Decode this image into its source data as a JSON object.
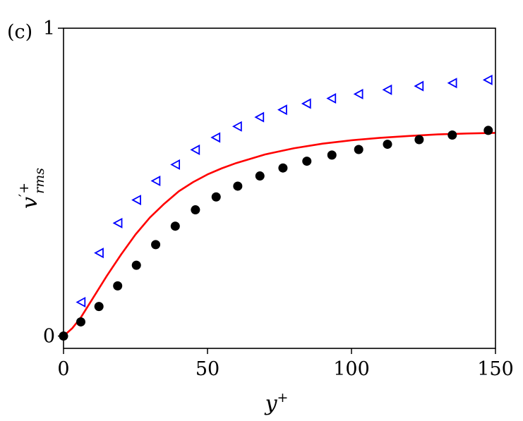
{
  "panel_label": "(c)",
  "chart_data": {
    "type": "line",
    "title": "",
    "xlabel": "y",
    "xlabel_sup": "+",
    "ylabel": "v",
    "ylabel_sup": "′+",
    "ylabel_sub": "rms",
    "xlim": [
      0,
      150
    ],
    "ylim": [
      -0.04,
      1.0
    ],
    "xticks": [
      0,
      50,
      100,
      150
    ],
    "yticks": [
      0,
      1
    ],
    "grid": false,
    "legend": "none",
    "series": [
      {
        "kind": "line",
        "color": "#ff0000",
        "x": [
          0,
          3,
          6,
          10,
          15,
          20,
          25,
          30,
          35,
          40,
          45,
          50,
          55,
          60,
          70,
          80,
          90,
          100,
          110,
          120,
          130,
          140,
          150
        ],
        "y": [
          0,
          0.025,
          0.06,
          0.12,
          0.195,
          0.265,
          0.33,
          0.385,
          0.43,
          0.47,
          0.5,
          0.525,
          0.545,
          0.562,
          0.59,
          0.61,
          0.625,
          0.636,
          0.644,
          0.65,
          0.655,
          0.658,
          0.66
        ]
      },
      {
        "kind": "scatter",
        "marker": "circle",
        "color": "#000000",
        "x": [
          0,
          6,
          12.3,
          18.8,
          25.3,
          32,
          38.8,
          45.8,
          53,
          60.5,
          68.2,
          76.2,
          84.5,
          93.2,
          102.5,
          112.5,
          123.5,
          135,
          147.5
        ],
        "y": [
          0,
          0.046,
          0.096,
          0.163,
          0.23,
          0.297,
          0.357,
          0.41,
          0.452,
          0.487,
          0.52,
          0.546,
          0.568,
          0.588,
          0.606,
          0.623,
          0.638,
          0.653,
          0.668
        ]
      },
      {
        "kind": "scatter",
        "marker": "triangle-left",
        "color": "#0000ff",
        "x": [
          6.2,
          12.5,
          19,
          25.5,
          32.2,
          39,
          45.9,
          53,
          60.5,
          68.2,
          76.2,
          84.5,
          93.2,
          102.6,
          112.6,
          123.6,
          135.2,
          147.5
        ],
        "y": [
          0.11,
          0.27,
          0.367,
          0.442,
          0.504,
          0.557,
          0.605,
          0.645,
          0.681,
          0.711,
          0.735,
          0.755,
          0.772,
          0.786,
          0.8,
          0.812,
          0.822,
          0.832
        ]
      }
    ]
  }
}
